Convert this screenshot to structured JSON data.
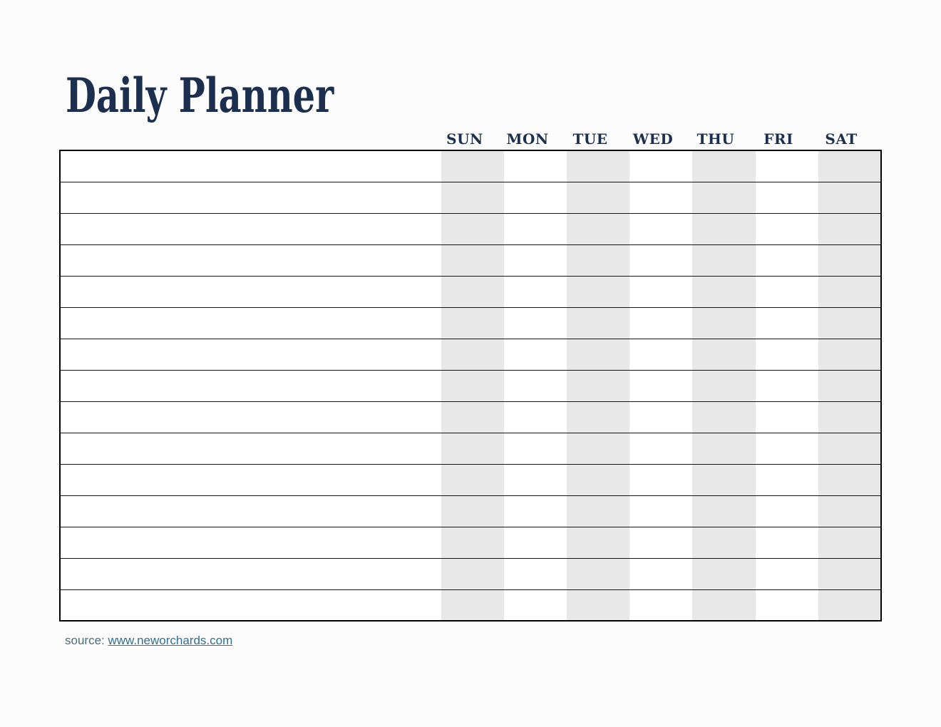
{
  "page": {
    "title": "Daily Planner",
    "background": "#fcfcfc"
  },
  "planner": {
    "day_headers": [
      "SUN",
      "MON",
      "TUE",
      "WED",
      "THU",
      "FRI",
      "SAT"
    ],
    "row_count": 15,
    "shaded_days": [
      "SUN",
      "TUE",
      "THU",
      "SAT"
    ],
    "colors": {
      "heading_text": "#1c2f4f",
      "column_shade": "#e8e8e8",
      "grid_line": "#141414",
      "table_border": "#000000"
    }
  },
  "footer": {
    "source_label": "source:",
    "source_link": "www.neworchards.com",
    "label_color": "#4b6d7e",
    "link_color": "#2f7093"
  }
}
